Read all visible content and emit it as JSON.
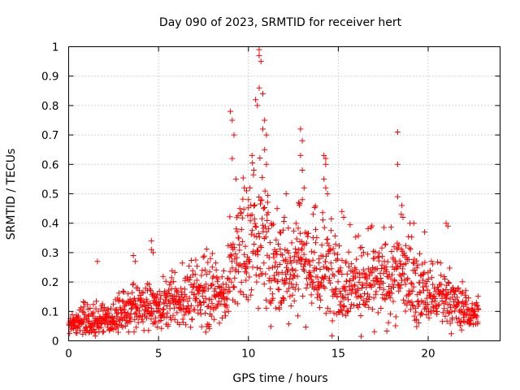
{
  "chart_data": {
    "type": "scatter",
    "title": "Day 090 of 2023, SRMTID for receiver hert",
    "xlabel": "GPS time / hours",
    "ylabel": "SRMTID / TECUs",
    "xlim": [
      0,
      24
    ],
    "ylim": [
      0,
      1
    ],
    "xticks": [
      "0",
      "5",
      "10",
      "15",
      "20"
    ],
    "yticks": [
      "0",
      "0.1",
      "0.2",
      "0.3",
      "0.4",
      "0.5",
      "0.6",
      "0.7",
      "0.8",
      "0.9",
      "1"
    ],
    "grid": true,
    "marker": "+",
    "color": "#ff0000",
    "x_extent": [
      0,
      22.8
    ],
    "profile": {
      "x": [
        0,
        1,
        2,
        3,
        4,
        5,
        6,
        7,
        8,
        8.8,
        9.0,
        9.5,
        10,
        10.5,
        11,
        11.5,
        12,
        12.5,
        13,
        13.5,
        14,
        14.5,
        15,
        15.5,
        16,
        16.5,
        17,
        17.5,
        18,
        18.5,
        19,
        19.5,
        20,
        20.5,
        21,
        21.5,
        22,
        22.5,
        22.8
      ],
      "y": [
        0.06,
        0.07,
        0.07,
        0.09,
        0.11,
        0.11,
        0.13,
        0.15,
        0.16,
        0.16,
        0.23,
        0.29,
        0.33,
        0.36,
        0.31,
        0.24,
        0.23,
        0.26,
        0.31,
        0.24,
        0.22,
        0.24,
        0.22,
        0.2,
        0.2,
        0.19,
        0.2,
        0.2,
        0.21,
        0.24,
        0.2,
        0.16,
        0.15,
        0.14,
        0.14,
        0.12,
        0.1,
        0.09,
        0.09
      ]
    },
    "highlights": [
      {
        "x": 1.6,
        "y": 0.27
      },
      {
        "x": 3.6,
        "y": 0.29
      },
      {
        "x": 3.7,
        "y": 0.27
      },
      {
        "x": 4.6,
        "y": 0.34
      },
      {
        "x": 4.6,
        "y": 0.31
      },
      {
        "x": 4.7,
        "y": 0.3
      },
      {
        "x": 9.0,
        "y": 0.78
      },
      {
        "x": 9.1,
        "y": 0.75
      },
      {
        "x": 9.2,
        "y": 0.7
      },
      {
        "x": 9.1,
        "y": 0.62
      },
      {
        "x": 9.3,
        "y": 0.55
      },
      {
        "x": 9.9,
        "y": 0.51
      },
      {
        "x": 10.0,
        "y": 0.48
      },
      {
        "x": 10.2,
        "y": 0.63
      },
      {
        "x": 10.3,
        "y": 0.58
      },
      {
        "x": 10.4,
        "y": 0.82
      },
      {
        "x": 10.5,
        "y": 0.8
      },
      {
        "x": 10.6,
        "y": 0.99
      },
      {
        "x": 10.6,
        "y": 0.97
      },
      {
        "x": 10.7,
        "y": 0.95
      },
      {
        "x": 10.6,
        "y": 0.86
      },
      {
        "x": 10.8,
        "y": 0.84
      },
      {
        "x": 10.9,
        "y": 0.75
      },
      {
        "x": 10.8,
        "y": 0.72
      },
      {
        "x": 11.0,
        "y": 0.7
      },
      {
        "x": 10.9,
        "y": 0.65
      },
      {
        "x": 11.0,
        "y": 0.6
      },
      {
        "x": 11.6,
        "y": 0.45
      },
      {
        "x": 12.0,
        "y": 0.42
      },
      {
        "x": 12.1,
        "y": 0.5
      },
      {
        "x": 12.9,
        "y": 0.72
      },
      {
        "x": 13.0,
        "y": 0.68
      },
      {
        "x": 12.9,
        "y": 0.63
      },
      {
        "x": 13.0,
        "y": 0.58
      },
      {
        "x": 13.1,
        "y": 0.52
      },
      {
        "x": 12.8,
        "y": 0.47
      },
      {
        "x": 13.6,
        "y": 0.43
      },
      {
        "x": 14.2,
        "y": 0.63
      },
      {
        "x": 14.3,
        "y": 0.62
      },
      {
        "x": 14.3,
        "y": 0.6
      },
      {
        "x": 14.2,
        "y": 0.55
      },
      {
        "x": 14.3,
        "y": 0.52
      },
      {
        "x": 14.4,
        "y": 0.5
      },
      {
        "x": 15.2,
        "y": 0.44
      },
      {
        "x": 15.3,
        "y": 0.42
      },
      {
        "x": 18.3,
        "y": 0.71
      },
      {
        "x": 18.3,
        "y": 0.6
      },
      {
        "x": 18.3,
        "y": 0.49
      },
      {
        "x": 18.5,
        "y": 0.43
      },
      {
        "x": 18.6,
        "y": 0.42
      },
      {
        "x": 19.2,
        "y": 0.4
      },
      {
        "x": 19.8,
        "y": 0.37
      },
      {
        "x": 21.0,
        "y": 0.4
      },
      {
        "x": 21.1,
        "y": 0.39
      }
    ]
  }
}
